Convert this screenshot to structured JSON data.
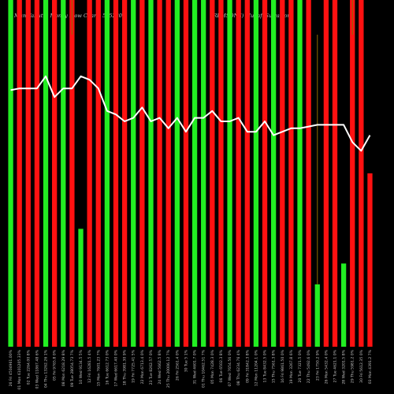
{
  "header": {
    "left": "MunafaSutra Money Flow Charts 505230",
    "right": "(REMSONS) MunafaSutra.com"
  },
  "chart_data": {
    "type": "bar",
    "title": "MunafaSutra Money Flow Charts 505230",
    "subtitle": "(REMSONS) MunafaSutra.com",
    "colors": {
      "up": "#22ee22",
      "down": "#ff1111",
      "line": "#ffffff",
      "wick": "#8a6a00",
      "label": "#c0c0c0",
      "background": "#000000"
    },
    "bar_scale": [
      0,
      100
    ],
    "line_scale": [
      0,
      100
    ],
    "categories": [
      "26 Fri Feb 2021",
      "01 Mon Mar 2021",
      "02 Tue Mar 2021",
      "03 Wed Mar 2021",
      "04 Thu Mar 2021",
      "05 Fri Mar 2021",
      "08 Mon Mar 2021",
      "09 Tue Mar 2021",
      "10 Wed Mar 2021",
      "12 Fri Mar 2021",
      "15 Mon Mar 2021",
      "16 Tue Mar 2021",
      "17 Wed Mar 2021",
      "18 Thu Mar 2021",
      "19 Fri Mar 2021",
      "22 Mon Mar 2021",
      "23 Tue Mar 2021",
      "24 Wed Mar 2021",
      "25 Thu Mar 2021",
      "26 Fri Mar 2021",
      "30 Tue Mar 2021",
      "31 Wed Mar 2021",
      "01 Thu Apr 2021",
      "05 Mon Apr 2021",
      "06 Tue Apr 2021",
      "07 Wed Apr 2021",
      "08 Thu Apr 2021",
      "09 Fri Apr 2021",
      "12 Mon Apr 2021",
      "13 Tue Apr 2021",
      "15 Thu Apr 2021",
      "16 Fri Apr 2021",
      "19 Mon Apr 2021",
      "20 Tue Apr 2021",
      "22 Thu Apr 2021",
      "23 Fri Apr 2021",
      "26 Mon Apr 2021",
      "27 Tue Apr 2021",
      "28 Wed Apr 2021",
      "29 Thu Apr 2021",
      "30 Fri Apr 2021",
      "03 Mon May 2021"
    ],
    "x_labels": [
      "26 Fri 4504961.00%",
      "01 Mon 6101205.33%",
      "02 Tue 2264.00 8%",
      "03 Wed 11867.48 6%",
      "04 Thu 13262.26 1%",
      "05 Fri 9765.8 0%",
      "08 Mon 6218.29 8%",
      "09 Tue 28054.73 7%",
      "10 Wed 9134.5 5%",
      "12 Fri 16281.5 4%",
      "15 Mon 7601.23 7%",
      "16 Tue 6612.73 0%",
      "17 Wed 6617.40 0%",
      "18 Thu 3981.30 9%",
      "19 Fri 7725.41 5%",
      "22 Mon 6713.4 0%",
      "23 Tue 8262.57 0%",
      "24 Wed 5662.5 8%",
      "25 Thu 20006.12 7%",
      "26 Fri 2561.4 0%",
      "30 Tue 5 1%",
      "31 Wed 4601.7 0%",
      "01 Thu 10462.51 7%",
      "05 Mon 7428.3 0%",
      "06 Tue 6502.3 8%",
      "07 Wed 7654.56 0%",
      "08 Thu 6234.76 4%",
      "09 Fri 31842.3 8%",
      "12 Mon 11204.1 0%",
      "13 Tue 8432.5 0%",
      "15 Thu 7561.3 8%",
      "16 Fri 9861.50 0%",
      "19 Mon 3267.8 6%",
      "20 Tue 7321.5 0%",
      "22 Thu 5492.6 0%",
      "23 Fri 1750.2 9%",
      "26 Mon 5432.4 0%",
      "27 Tue 4621.1 0%",
      "28 Wed 3201.5 8%",
      "29 Thu 5981.2 0%",
      "30 Fri 5612.35 0%",
      "03 Mon 4391.2 7%"
    ],
    "series": [
      {
        "directions": [
          "up",
          "down",
          "down",
          "down",
          "up",
          "down",
          "up",
          "down",
          "up",
          "down",
          "down",
          "up",
          "down",
          "down",
          "up",
          "down",
          "up",
          "down",
          "down",
          "up",
          "down",
          "up",
          "up",
          "down",
          "down",
          "up",
          "down",
          "down",
          "up",
          "down",
          "up",
          "down",
          "down",
          "up",
          "down",
          "up",
          "down",
          "down",
          "up",
          "down",
          "down",
          "down"
        ],
        "values": [
          100,
          100,
          100,
          100,
          100,
          100,
          100,
          100,
          34,
          100,
          100,
          100,
          100,
          100,
          100,
          100,
          100,
          100,
          100,
          100,
          100,
          100,
          100,
          100,
          100,
          100,
          100,
          100,
          100,
          100,
          100,
          100,
          100,
          100,
          100,
          18,
          100,
          100,
          24,
          100,
          100,
          50
        ]
      },
      {
        "values": [
          74,
          74.5,
          74.5,
          74.5,
          78,
          72,
          74.5,
          74.5,
          78,
          77,
          74.5,
          68,
          67,
          65,
          66,
          69,
          65,
          66,
          63,
          66,
          62,
          66,
          66,
          68,
          65,
          65,
          66,
          62,
          62,
          65,
          61,
          62,
          63,
          63,
          63.5,
          64,
          64,
          64,
          64,
          59,
          56.5,
          61
        ]
      }
    ],
    "wicks": [
      {
        "category": "09 Tue Mar 2021",
        "top": 90
      },
      {
        "category": "23 Fri Apr 2021",
        "top": 90
      },
      {
        "category": "29 Thu Apr 2021",
        "top": 90
      }
    ]
  }
}
